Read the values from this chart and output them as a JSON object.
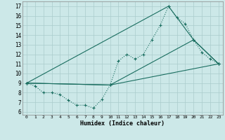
{
  "xlabel": "Humidex (Indice chaleur)",
  "xlim": [
    -0.5,
    23.5
  ],
  "ylim": [
    5.7,
    17.5
  ],
  "xticks": [
    0,
    1,
    2,
    3,
    4,
    5,
    6,
    7,
    8,
    9,
    10,
    11,
    12,
    13,
    14,
    15,
    16,
    17,
    18,
    19,
    20,
    21,
    22,
    23
  ],
  "yticks": [
    6,
    7,
    8,
    9,
    10,
    11,
    12,
    13,
    14,
    15,
    16,
    17
  ],
  "background_color": "#cce8e8",
  "grid_color": "#aacccc",
  "line_color": "#1a6e60",
  "line1": [
    [
      0,
      9.0
    ],
    [
      1,
      8.7
    ],
    [
      2,
      8.0
    ],
    [
      3,
      8.0
    ],
    [
      4,
      7.8
    ],
    [
      5,
      7.2
    ],
    [
      6,
      6.7
    ],
    [
      7,
      6.7
    ],
    [
      8,
      6.4
    ],
    [
      9,
      7.3
    ],
    [
      10,
      8.8
    ],
    [
      11,
      11.3
    ],
    [
      12,
      12.0
    ],
    [
      13,
      11.5
    ],
    [
      14,
      12.0
    ],
    [
      15,
      13.5
    ],
    [
      16,
      15.0
    ],
    [
      17,
      17.0
    ],
    [
      18,
      15.8
    ],
    [
      19,
      15.2
    ],
    [
      20,
      13.5
    ],
    [
      21,
      12.2
    ],
    [
      22,
      11.5
    ],
    [
      23,
      11.0
    ]
  ],
  "line2": [
    [
      0,
      9.0
    ],
    [
      17,
      17.0
    ],
    [
      20,
      13.5
    ],
    [
      23,
      11.0
    ]
  ],
  "line3": [
    [
      0,
      9.0
    ],
    [
      10,
      8.8
    ],
    [
      20,
      13.5
    ],
    [
      23,
      11.0
    ]
  ],
  "line4": [
    [
      0,
      9.0
    ],
    [
      10,
      8.8
    ],
    [
      23,
      11.0
    ]
  ]
}
